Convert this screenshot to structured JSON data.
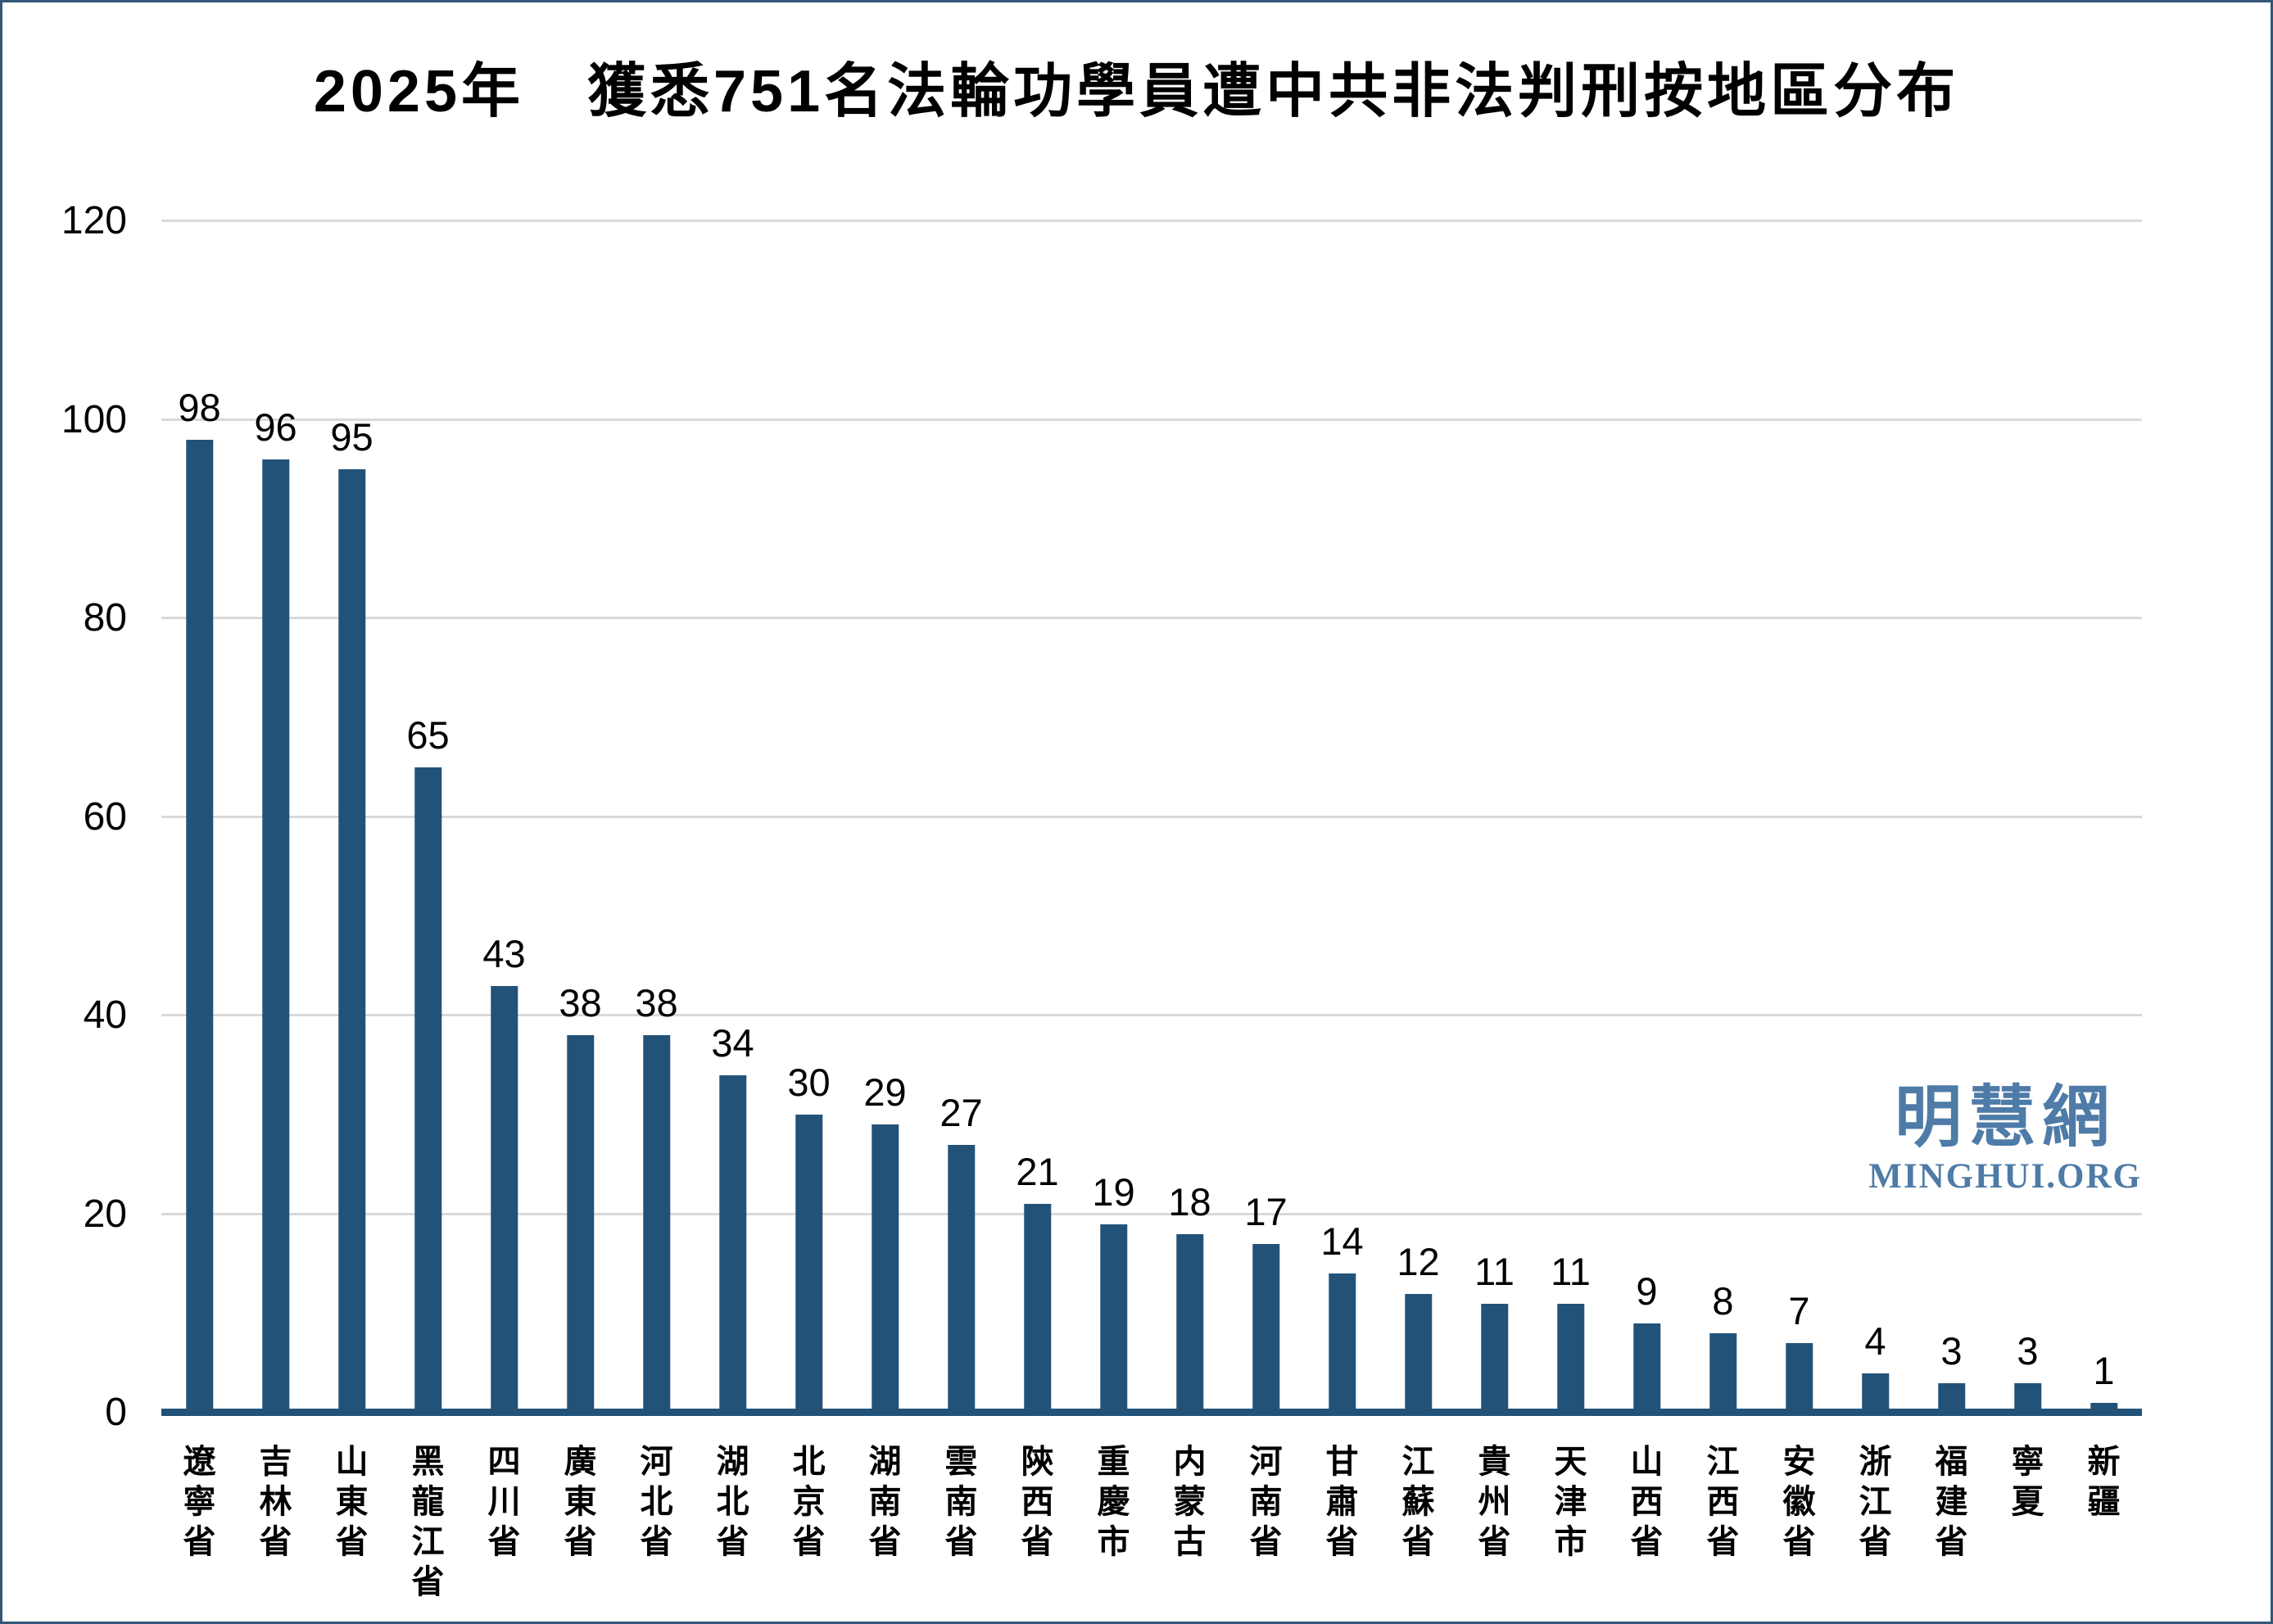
{
  "title": "2025年　獲悉751名法輪功學員遭中共非法判刑按地區分布",
  "watermark": {
    "cjk": "明慧網",
    "latin": "MINGHUI.ORG"
  },
  "colors": {
    "bar": "#235278",
    "axis_line": "#235278",
    "gridline": "#D9D9D9",
    "frame_border": "#33587A",
    "watermark": "#4E7BA7"
  },
  "chart_data": {
    "type": "bar",
    "title": "2025年　獲悉751名法輪功學員遭中共非法判刑按地區分布",
    "categories": [
      "遼寧省",
      "吉林省",
      "山東省",
      "黑龍江省",
      "四川省",
      "廣東省",
      "河北省",
      "湖北省",
      "北京省",
      "湖南省",
      "雲南省",
      "陝西省",
      "重慶市",
      "内蒙古",
      "河南省",
      "甘肅省",
      "江蘇省",
      "貴州省",
      "天津市",
      "山西省",
      "江西省",
      "安徽省",
      "浙江省",
      "福建省",
      "寧夏",
      "新疆"
    ],
    "values": [
      98,
      96,
      95,
      65,
      43,
      38,
      38,
      34,
      30,
      29,
      27,
      21,
      19,
      18,
      17,
      14,
      12,
      11,
      11,
      9,
      8,
      7,
      4,
      3,
      3,
      1
    ],
    "total": 751,
    "xlabel": "",
    "ylabel": "",
    "y_ticks": [
      0,
      20,
      40,
      60,
      80,
      100,
      120
    ],
    "ylim": [
      0,
      120
    ],
    "grid": true,
    "legend": "none",
    "data_labels": true,
    "category_text_orientation": "vertical"
  }
}
